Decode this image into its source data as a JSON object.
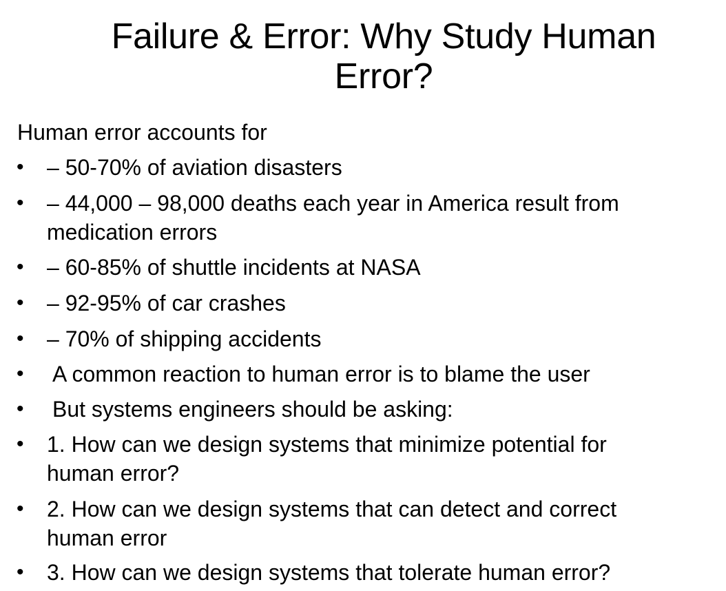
{
  "slide": {
    "title_line1": "Failure & Error: Why Study Human",
    "title_line2": "Error?",
    "intro": "Human error accounts for",
    "bullet_marker": "•",
    "bullets": [
      {
        "line1": "– 50-70% of aviation disasters",
        "line2": ""
      },
      {
        "line1": "– 44,000 – 98,000 deaths each year in America result from",
        "line2": "medication errors"
      },
      {
        "line1": "– 60-85% of shuttle incidents at NASA",
        "line2": ""
      },
      {
        "line1": "– 92-95% of car crashes",
        "line2": ""
      },
      {
        "line1": "– 70% of shipping accidents",
        "line2": ""
      },
      {
        "line1": "A common reaction to human error is to blame the user",
        "line2": ""
      },
      {
        "line1": "But systems engineers should be asking:",
        "line2": ""
      },
      {
        "line1": "1. How can we design systems that minimize potential for",
        "line2": "human error?"
      },
      {
        "line1": "2. How can we design systems that can detect and correct",
        "line2": "human error"
      },
      {
        "line1": "3. How can we design systems that tolerate human error?",
        "line2": ""
      }
    ]
  }
}
